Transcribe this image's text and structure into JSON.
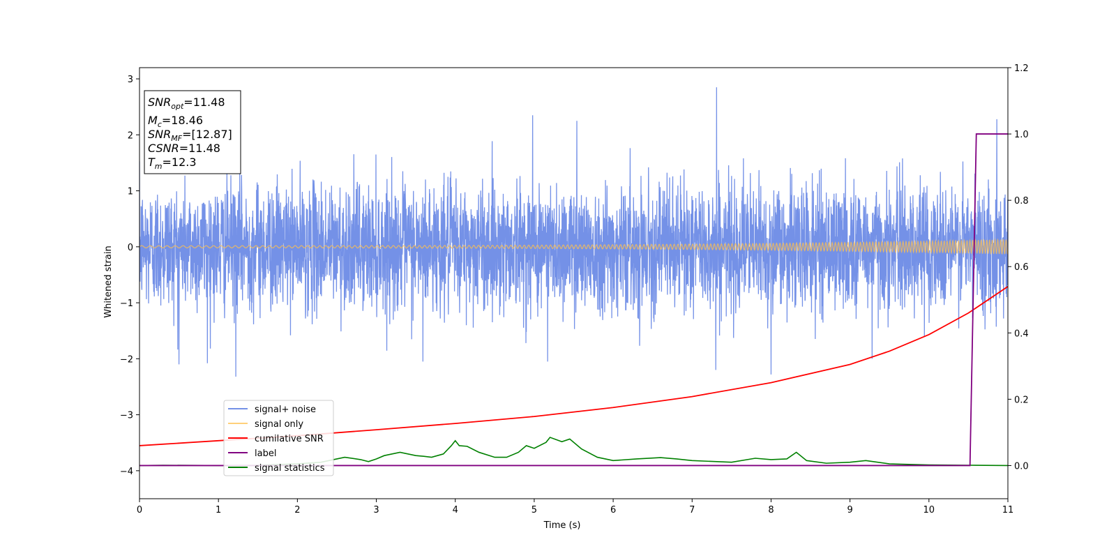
{
  "chart_data": {
    "type": "line",
    "xlabel": "Time (s)",
    "ylabel": "Whitened strain",
    "xlim": [
      0,
      11
    ],
    "ylim": [
      -4.5,
      3.2
    ],
    "y2lim": [
      -0.1,
      1.2
    ],
    "x_ticks": [
      "0",
      "1",
      "2",
      "3",
      "4",
      "5",
      "6",
      "7",
      "8",
      "9",
      "10",
      "11"
    ],
    "y_ticks": [
      "3",
      "2",
      "1",
      "0",
      "−1",
      "−2",
      "−3",
      "−4"
    ],
    "y2_ticks": [
      "1.2",
      "1.0",
      "0.8",
      "0.6",
      "0.4",
      "0.2",
      "0.0"
    ],
    "colors": {
      "signal_noise": "#6d8be6",
      "signal_only": "#ffc04d",
      "cumulative_snr": "#ff0000",
      "label": "#800080",
      "signal_statistics": "#008000"
    },
    "info_box": {
      "lines": [
        {
          "main": "SNR",
          "sub": "opt",
          "value": "=11.48"
        },
        {
          "main": "M",
          "sub": "c",
          "value": "=18.46"
        },
        {
          "main": "SNR",
          "sub": "MF",
          "value": "=[12.87]"
        },
        {
          "main": "CSNR",
          "sub": "",
          "value": "=11.48"
        },
        {
          "main": "T",
          "sub": "m",
          "value": "=12.3"
        }
      ]
    },
    "legend": {
      "placement": "lower-left",
      "entries": [
        "signal+ noise",
        "signal only",
        "cumilative SNR",
        "label",
        "signal statistics"
      ]
    },
    "series": [
      {
        "name": "signal+ noise",
        "axis": "left",
        "style": "noise",
        "description_values": {
          "x_range": [
            0,
            11
          ],
          "core_amplitude": 0.7,
          "peak_max": 2.85,
          "peak_min": -2.32
        },
        "peaks": [
          {
            "x": 7.31,
            "y": 2.85
          },
          {
            "x": 4.98,
            "y": 2.35
          },
          {
            "x": 10.86,
            "y": 2.28
          },
          {
            "x": 1.22,
            "y": -2.32
          },
          {
            "x": 8.0,
            "y": -2.28
          },
          {
            "x": 0.5,
            "y": -2.1
          },
          {
            "x": 5.54,
            "y": 2.25
          },
          {
            "x": 5.17,
            "y": -2.05
          },
          {
            "x": 7.3,
            "y": -2.2
          },
          {
            "x": 0.86,
            "y": -2.08
          },
          {
            "x": 3.59,
            "y": -2.05
          },
          {
            "x": 9.28,
            "y": -2.0
          }
        ]
      },
      {
        "name": "signal only",
        "axis": "left",
        "style": "chirp",
        "description_values": {
          "x_range": [
            0,
            11
          ],
          "amp_start": 0.02,
          "amp_end": 0.13
        }
      },
      {
        "name": "cumilative SNR",
        "axis": "right",
        "points": [
          [
            0,
            0.06
          ],
          [
            1,
            0.075
          ],
          [
            2,
            0.09
          ],
          [
            3,
            0.108
          ],
          [
            4,
            0.127
          ],
          [
            5,
            0.148
          ],
          [
            6,
            0.175
          ],
          [
            7,
            0.208
          ],
          [
            8,
            0.25
          ],
          [
            9,
            0.305
          ],
          [
            9.5,
            0.345
          ],
          [
            10,
            0.395
          ],
          [
            10.5,
            0.46
          ],
          [
            11,
            0.54
          ]
        ]
      },
      {
        "name": "label",
        "axis": "right",
        "points": [
          [
            0,
            0.0
          ],
          [
            10.52,
            0.0
          ],
          [
            10.6,
            1.0
          ],
          [
            11,
            1.0
          ]
        ]
      },
      {
        "name": "signal statistics",
        "axis": "right",
        "points": [
          [
            0,
            0.0
          ],
          [
            0.3,
            0.001
          ],
          [
            1.0,
            0.0
          ],
          [
            1.5,
            0.001
          ],
          [
            2.0,
            0.005
          ],
          [
            2.3,
            0.01
          ],
          [
            2.5,
            0.02
          ],
          [
            2.6,
            0.025
          ],
          [
            2.8,
            0.018
          ],
          [
            2.9,
            0.012
          ],
          [
            3.0,
            0.02
          ],
          [
            3.1,
            0.03
          ],
          [
            3.3,
            0.04
          ],
          [
            3.5,
            0.03
          ],
          [
            3.6,
            0.028
          ],
          [
            3.7,
            0.025
          ],
          [
            3.85,
            0.035
          ],
          [
            3.95,
            0.06
          ],
          [
            4.0,
            0.075
          ],
          [
            4.05,
            0.06
          ],
          [
            4.15,
            0.058
          ],
          [
            4.3,
            0.04
          ],
          [
            4.5,
            0.025
          ],
          [
            4.65,
            0.025
          ],
          [
            4.8,
            0.04
          ],
          [
            4.9,
            0.06
          ],
          [
            5.0,
            0.052
          ],
          [
            5.15,
            0.07
          ],
          [
            5.2,
            0.085
          ],
          [
            5.35,
            0.072
          ],
          [
            5.45,
            0.08
          ],
          [
            5.6,
            0.05
          ],
          [
            5.8,
            0.025
          ],
          [
            6.0,
            0.015
          ],
          [
            6.3,
            0.02
          ],
          [
            6.6,
            0.024
          ],
          [
            6.8,
            0.02
          ],
          [
            7.0,
            0.015
          ],
          [
            7.5,
            0.01
          ],
          [
            7.8,
            0.022
          ],
          [
            8.0,
            0.018
          ],
          [
            8.2,
            0.02
          ],
          [
            8.32,
            0.04
          ],
          [
            8.45,
            0.015
          ],
          [
            8.7,
            0.007
          ],
          [
            9.0,
            0.01
          ],
          [
            9.2,
            0.015
          ],
          [
            9.5,
            0.005
          ],
          [
            10.0,
            0.002
          ],
          [
            10.5,
            0.001
          ],
          [
            11.0,
            0.0
          ]
        ]
      }
    ]
  }
}
